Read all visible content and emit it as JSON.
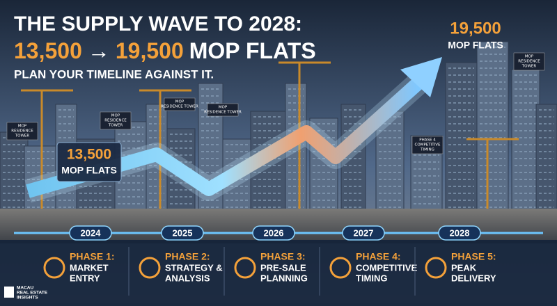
{
  "header": {
    "line1": "THE SUPPLY WAVE TO 2028:",
    "line2": {
      "from": "13,500",
      "arrow": "→",
      "to": "19,500",
      "unit": "MOP FLATS"
    },
    "line3": "PLAN YOUR TIMELINE AGAINST IT."
  },
  "callouts": [
    {
      "value": "13,500",
      "label": "MOP FLATS"
    },
    {
      "value": "19,500",
      "label": "MOP FLATS"
    }
  ],
  "signs": [
    [
      "MOP",
      "RESIDENCE",
      "TOWER"
    ],
    [
      "MOP",
      "RESIDENCE",
      "TOWER"
    ],
    [
      "MOP",
      "RESIDENCE TOWER"
    ],
    [
      "MOP",
      "RESIDENCE TOWER"
    ],
    [
      "MOP",
      "RESIDENCE",
      "TOWER"
    ],
    [
      "PHASE 4",
      "COMPETITIVE",
      "TIMING"
    ]
  ],
  "timeline": {
    "years": [
      "2024",
      "2025",
      "2026",
      "2027",
      "2028"
    ]
  },
  "phases": [
    {
      "title": "PHASE 1:",
      "name": [
        "MARKET",
        "ENTRY"
      ]
    },
    {
      "title": "PHASE 2:",
      "name": [
        "STRATEGY &",
        "ANALYSIS"
      ]
    },
    {
      "title": "PHASE 3:",
      "name": [
        "PRE-SALE",
        "PLANNING"
      ]
    },
    {
      "title": "PHASE 4:",
      "name": [
        "COMPETITIVE",
        "TIMING"
      ]
    },
    {
      "title": "PHASE 5:",
      "name": [
        "PEAK",
        "DELIVERY"
      ]
    }
  ],
  "logo": [
    "MACAU",
    "REAL ESTATE",
    "INSIGHTS"
  ]
}
